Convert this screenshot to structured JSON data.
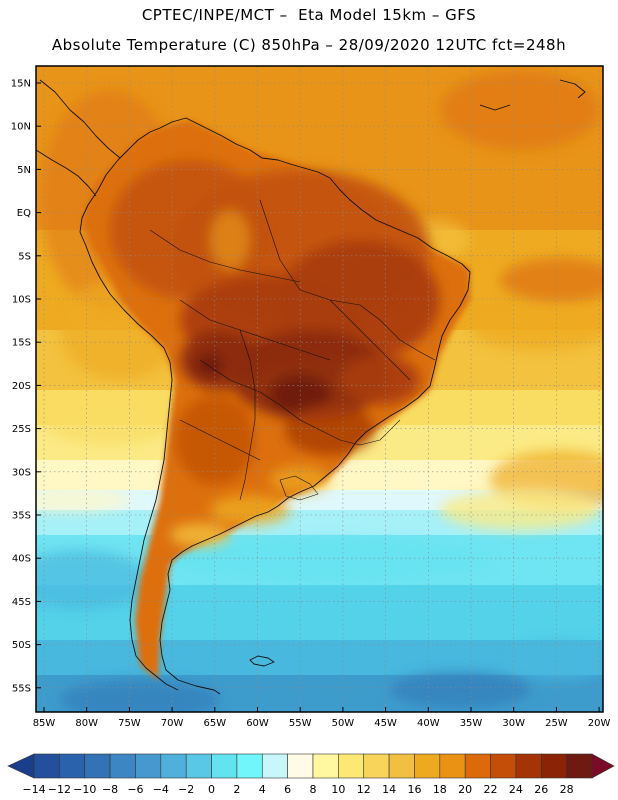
{
  "header": {
    "line1": "CPTEC/INPE/MCT –  Eta Model 15km – GFS",
    "line2": "Absolute Temperature (C) 850hPa – 28/09/2020 12UTC fct=248h"
  },
  "lat_labels": [
    "15N",
    "10N",
    "5N",
    "EQ",
    "5S",
    "10S",
    "15S",
    "20S",
    "25S",
    "30S",
    "35S",
    "40S",
    "45S",
    "50S",
    "55S"
  ],
  "lon_labels": [
    "85W",
    "80W",
    "75W",
    "70W",
    "65W",
    "60W",
    "55W",
    "50W",
    "45W",
    "40W",
    "35W",
    "30W",
    "25W",
    "20W"
  ],
  "colorbar": {
    "labels": [
      "−14",
      "−12",
      "−10",
      "−8",
      "−6",
      "−4",
      "−2",
      "0",
      "2",
      "4",
      "6",
      "8",
      "10",
      "12",
      "14",
      "16",
      "18",
      "20",
      "22",
      "24",
      "26",
      "28"
    ],
    "colors": [
      "#1b3e8c",
      "#23509c",
      "#2a62ac",
      "#3472b6",
      "#3d86c4",
      "#4599cf",
      "#4fb0dc",
      "#58c8e6",
      "#63e2f0",
      "#71f6fb",
      "#c7f6fb",
      "#fffbe6",
      "#fff8a0",
      "#fde874",
      "#f8d45a",
      "#f2c040",
      "#eeaa1e",
      "#e99214",
      "#dd6a0a",
      "#c44d08",
      "#a43406",
      "#8b2406",
      "#6e1a10",
      "#7a0a26"
    ]
  },
  "palette": {
    "t28": "#6e1c10",
    "t26": "#8b2a08",
    "t24": "#a83c08",
    "t22": "#c25208",
    "t20": "#dd7010",
    "t18": "#e89418",
    "t16": "#eeab22",
    "t14": "#f3c23e",
    "t12": "#f9dc62",
    "t10": "#fbeb86",
    "t8": "#fff7c4",
    "t6": "#dff8fb",
    "t4": "#a6f0f8",
    "t2": "#6fe4f2",
    "t0": "#54d2ea",
    "tm2": "#48b8de",
    "tm4": "#3e9ccd",
    "tm6": "#347fbc",
    "coast": "#111111",
    "grid": "#9a9a9a"
  }
}
